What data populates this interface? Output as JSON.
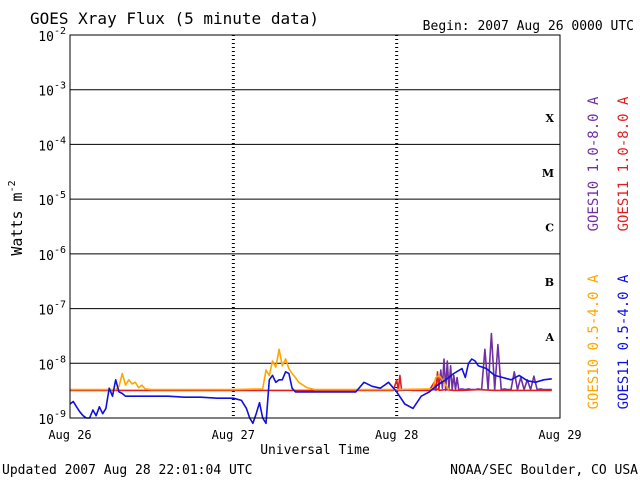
{
  "chart_data": {
    "type": "line",
    "title": "GOES Xray Flux (5 minute data)",
    "begin_label": "Begin:  2007 Aug 26 0000 UTC",
    "ylabel_main": "Watts m",
    "ylabel_exp": "-2",
    "xlabel": "Universal Time",
    "x_tick_labels": [
      "Aug 26",
      "Aug 27",
      "Aug 28",
      "Aug 29"
    ],
    "xlim_days": [
      0,
      3
    ],
    "y_scale": "log",
    "ylim": [
      1e-09,
      0.01
    ],
    "y_tick_labels": [
      {
        "base": "10",
        "exp": "-2"
      },
      {
        "base": "10",
        "exp": "-3"
      },
      {
        "base": "10",
        "exp": "-4"
      },
      {
        "base": "10",
        "exp": "-5"
      },
      {
        "base": "10",
        "exp": "-6"
      },
      {
        "base": "10",
        "exp": "-7"
      },
      {
        "base": "10",
        "exp": "-8"
      },
      {
        "base": "10",
        "exp": "-9"
      }
    ],
    "flare_classes": [
      "X",
      "M",
      "C",
      "B",
      "A"
    ],
    "grid": true,
    "legend": [
      {
        "label": "GOES10 1.0-8.0 A",
        "color": "#7030a0"
      },
      {
        "label": "GOES11 1.0-8.0 A",
        "color": "#e02020"
      },
      {
        "label": "GOES10 0.5-4.0 A",
        "color": "#ffa500"
      },
      {
        "label": "GOES11 0.5-4.0 A",
        "color": "#1010e0"
      }
    ],
    "series": [
      {
        "name": "GOES10 1.0-8.0 A",
        "color": "#7030a0",
        "x": [
          2.0,
          2.25,
          2.26,
          2.27,
          2.28,
          2.29,
          2.3,
          2.31,
          2.32,
          2.33,
          2.34,
          2.35,
          2.36,
          2.37,
          2.38,
          2.4,
          2.42,
          2.44,
          2.46,
          2.48,
          2.5,
          2.52,
          2.54,
          2.56,
          2.58,
          2.6,
          2.62,
          2.64,
          2.66,
          2.68,
          2.7,
          2.72,
          2.74,
          2.76,
          2.78,
          2.8,
          2.82,
          2.84,
          2.86,
          2.88,
          2.9,
          2.92,
          2.95
        ],
        "y": [
          3.2e-09,
          3.3e-09,
          3.6e-09,
          7.5e-09,
          3.5e-09,
          1.2e-08,
          3.2e-09,
          1.1e-08,
          3.4e-09,
          9e-09,
          3.3e-09,
          6e-09,
          3.3e-09,
          5.5e-09,
          3.3e-09,
          3.4e-09,
          3.3e-09,
          3.4e-09,
          3.3e-09,
          3.3e-09,
          3.4e-09,
          3.3e-09,
          1.8e-08,
          3.3e-09,
          3.5e-08,
          3.3e-09,
          2.2e-08,
          3.3e-09,
          3.4e-09,
          3.3e-09,
          3.3e-09,
          7e-09,
          3.3e-09,
          5.5e-09,
          3.3e-09,
          5e-09,
          3.3e-09,
          5.8e-09,
          3.3e-09,
          3.4e-09,
          3.3e-09,
          3.3e-09,
          3.3e-09
        ]
      },
      {
        "name": "GOES11 1.0-8.0 A",
        "color": "#e02020",
        "x": [
          0.0,
          0.2,
          0.4,
          0.6,
          0.8,
          1.0,
          1.2,
          1.4,
          1.6,
          1.8,
          1.98,
          2.0,
          2.01,
          2.02,
          2.03,
          2.05,
          2.1,
          2.2,
          2.23,
          2.24,
          2.25,
          2.26,
          2.3,
          2.35,
          2.4,
          2.5,
          2.6,
          2.7,
          2.8,
          2.9,
          2.95
        ],
        "y": [
          3.2e-09,
          3.2e-09,
          3.2e-09,
          3.2e-09,
          3.2e-09,
          3.2e-09,
          3.2e-09,
          3.2e-09,
          3.2e-09,
          3.2e-09,
          3.2e-09,
          5e-09,
          3.2e-09,
          6e-09,
          3.2e-09,
          3.3e-09,
          3.2e-09,
          3.2e-09,
          4.5e-09,
          3.2e-09,
          7e-09,
          3.2e-09,
          3.3e-09,
          3.2e-09,
          3.2e-09,
          3.3e-09,
          3.2e-09,
          3.2e-09,
          3.2e-09,
          3.2e-09,
          3.2e-09
        ]
      },
      {
        "name": "GOES10 0.5-4.0 A",
        "color": "#ffa500",
        "x": [
          0.0,
          0.28,
          0.3,
          0.32,
          0.34,
          0.36,
          0.38,
          0.4,
          0.42,
          0.44,
          0.46,
          0.5,
          1.0,
          1.18,
          1.2,
          1.22,
          1.24,
          1.26,
          1.28,
          1.3,
          1.32,
          1.34,
          1.36,
          1.38,
          1.4,
          1.45,
          1.5,
          2.0,
          2.22,
          2.24,
          2.26,
          2.28,
          2.3,
          2.32
        ],
        "y": [
          3.3e-09,
          3.3e-09,
          3.8e-09,
          6.5e-09,
          4e-09,
          5e-09,
          4.2e-09,
          4.5e-09,
          3.6e-09,
          4e-09,
          3.4e-09,
          3.3e-09,
          3.3e-09,
          3.4e-09,
          7.5e-09,
          6e-09,
          1.1e-08,
          8.5e-09,
          1.8e-08,
          9e-09,
          1.2e-08,
          8e-09,
          6.5e-09,
          5.5e-09,
          4.5e-09,
          3.6e-09,
          3.3e-09,
          3.3e-09,
          3.4e-09,
          5.5e-09,
          6e-09,
          5e-09,
          4e-09,
          3.3e-09
        ]
      },
      {
        "name": "GOES11 0.5-4.0 A",
        "color": "#1010e0",
        "x": [
          0.0,
          0.02,
          0.04,
          0.06,
          0.08,
          0.1,
          0.12,
          0.14,
          0.16,
          0.18,
          0.2,
          0.22,
          0.24,
          0.26,
          0.28,
          0.3,
          0.32,
          0.34,
          0.36,
          0.38,
          0.4,
          0.5,
          0.6,
          0.7,
          0.8,
          0.9,
          1.0,
          1.05,
          1.08,
          1.1,
          1.12,
          1.14,
          1.16,
          1.18,
          1.2,
          1.22,
          1.24,
          1.26,
          1.28,
          1.3,
          1.32,
          1.34,
          1.36,
          1.38,
          1.4,
          1.45,
          1.5,
          1.55,
          1.6,
          1.65,
          1.7,
          1.75,
          1.8,
          1.85,
          1.9,
          1.95,
          2.0,
          2.05,
          2.1,
          2.15,
          2.2,
          2.25,
          2.3,
          2.35,
          2.4,
          2.42,
          2.44,
          2.46,
          2.48,
          2.5,
          2.55,
          2.6,
          2.65,
          2.7,
          2.75,
          2.8,
          2.85,
          2.9,
          2.95
        ],
        "y": [
          1.8e-09,
          2e-09,
          1.6e-09,
          1.3e-09,
          1.1e-09,
          1e-09,
          1e-09,
          1.4e-09,
          1.1e-09,
          1.6e-09,
          1.2e-09,
          1.5e-09,
          3.5e-09,
          2.5e-09,
          5e-09,
          3e-09,
          2.8e-09,
          2.5e-09,
          2.5e-09,
          2.5e-09,
          2.5e-09,
          2.5e-09,
          2.5e-09,
          2.4e-09,
          2.4e-09,
          2.3e-09,
          2.3e-09,
          2.1e-09,
          1.5e-09,
          1e-09,
          8e-10,
          1.2e-09,
          1.9e-09,
          1e-09,
          8e-10,
          5e-09,
          6e-09,
          4.5e-09,
          5e-09,
          5e-09,
          7e-09,
          6.5e-09,
          3.5e-09,
          3e-09,
          3e-09,
          3e-09,
          3e-09,
          3e-09,
          3e-09,
          3e-09,
          3e-09,
          3e-09,
          4.5e-09,
          3.8e-09,
          3.5e-09,
          4.5e-09,
          3e-09,
          1.8e-09,
          1.5e-09,
          2.5e-09,
          3e-09,
          4e-09,
          5e-09,
          6.5e-09,
          8e-09,
          5.5e-09,
          1e-08,
          1.2e-08,
          1.1e-08,
          9e-09,
          8e-09,
          6e-09,
          5.5e-09,
          5e-09,
          6e-09,
          4.8e-09,
          4.5e-09,
          5e-09,
          5.2e-09
        ]
      }
    ]
  },
  "footer": {
    "updated": "Updated 2007 Aug 28 22:01:04 UTC",
    "credit": "NOAA/SEC Boulder, CO USA"
  }
}
